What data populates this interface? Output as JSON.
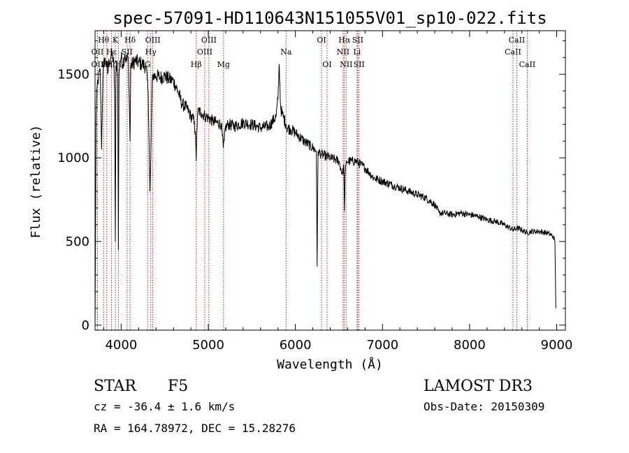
{
  "chart_data": {
    "type": "line",
    "title": "spec-57091-HD110643N151055V01_sp10-022.fits",
    "xlabel": "Wavelength (Å)",
    "ylabel": "Flux (relative)",
    "xlim": [
      3700,
      9100
    ],
    "ylim": [
      -30,
      1760
    ],
    "x_ticks": [
      4000,
      5000,
      6000,
      7000,
      8000,
      9000
    ],
    "y_ticks": [
      0,
      500,
      1000,
      1500
    ],
    "series": [
      {
        "name": "spectrum",
        "x": [
          3700,
          3712,
          3725,
          3740,
          3760,
          3775,
          3790,
          3800,
          3810,
          3820,
          3830,
          3845,
          3860,
          3880,
          3900,
          3915,
          3925,
          3933,
          3940,
          3950,
          3960,
          3968,
          3975,
          3985,
          4000,
          4020,
          4040,
          4060,
          4080,
          4090,
          4102,
          4110,
          4130,
          4160,
          4200,
          4240,
          4280,
          4310,
          4320,
          4330,
          4340,
          4350,
          4360,
          4370,
          4400,
          4450,
          4500,
          4550,
          4600,
          4650,
          4700,
          4750,
          4800,
          4840,
          4855,
          4861,
          4868,
          4880,
          4920,
          4960,
          5000,
          5050,
          5100,
          5150,
          5172,
          5183,
          5195,
          5230,
          5300,
          5400,
          5500,
          5600,
          5700,
          5780,
          5800,
          5815,
          5830,
          5850,
          5893,
          5900,
          5950,
          6000,
          6100,
          6200,
          6240,
          6250,
          6260,
          6300,
          6350,
          6400,
          6450,
          6500,
          6540,
          6555,
          6563,
          6570,
          6590,
          6650,
          6700,
          6750,
          6800,
          6850,
          6900,
          6950,
          7000,
          7100,
          7200,
          7300,
          7400,
          7500,
          7600,
          7650,
          7700,
          7800,
          7900,
          8000,
          8100,
          8200,
          8300,
          8400,
          8498,
          8542,
          8600,
          8662,
          8700,
          8800,
          8900,
          8960,
          8980,
          8990
        ],
        "values": [
          0,
          1250,
          1430,
          1480,
          1520,
          1050,
          1480,
          1540,
          1600,
          1560,
          1580,
          1500,
          1580,
          1600,
          1620,
          1550,
          1400,
          500,
          1500,
          1580,
          1500,
          450,
          1480,
          1580,
          1600,
          1560,
          1620,
          1580,
          1600,
          1400,
          1100,
          1550,
          1560,
          1580,
          1570,
          1560,
          1550,
          1400,
          1100,
          800,
          1000,
          1300,
          1500,
          1490,
          1490,
          1480,
          1490,
          1470,
          1460,
          1400,
          1320,
          1300,
          1250,
          1220,
          1100,
          980,
          1150,
          1280,
          1270,
          1250,
          1240,
          1220,
          1210,
          1200,
          1060,
          1100,
          1180,
          1200,
          1190,
          1210,
          1200,
          1180,
          1190,
          1250,
          1350,
          1560,
          1300,
          1260,
          1200,
          1180,
          1170,
          1150,
          1100,
          1060,
          1040,
          350,
          1040,
          1020,
          1010,
          1000,
          990,
          980,
          900,
          960,
          680,
          900,
          980,
          980,
          980,
          960,
          940,
          910,
          880,
          870,
          860,
          840,
          820,
          800,
          780,
          760,
          720,
          670,
          670,
          660,
          670,
          660,
          650,
          630,
          620,
          600,
          570,
          580,
          570,
          550,
          560,
          560,
          550,
          530,
          500,
          100
        ]
      }
    ],
    "line_markers": [
      {
        "label": "Hθ",
        "x": 3798,
        "row": 0
      },
      {
        "label": "OII",
        "x": 3727,
        "row": 1
      },
      {
        "label": "OII",
        "x": 3727,
        "row": 2
      },
      {
        "label": "Hη",
        "x": 3835,
        "row": 2
      },
      {
        "label": "Hε",
        "x": 3889,
        "row": 1
      },
      {
        "label": "Hζ",
        "x": 3889,
        "row": 2
      },
      {
        "label": "K",
        "x": 3933,
        "row": 0
      },
      {
        "label": "H",
        "x": 3968,
        "row": 2
      },
      {
        "label": "SII",
        "x": 4068,
        "row": 1
      },
      {
        "label": "Hδ",
        "x": 4102,
        "row": 0
      },
      {
        "label": "OIII",
        "x": 4363,
        "row": 0
      },
      {
        "label": "Hγ",
        "x": 4340,
        "row": 1
      },
      {
        "label": "G",
        "x": 4304,
        "row": 2
      },
      {
        "label": "Hβ",
        "x": 4861,
        "row": 2
      },
      {
        "label": "OIII",
        "x": 4959,
        "row": 1
      },
      {
        "label": "OIII",
        "x": 5007,
        "row": 0
      },
      {
        "label": "Mg",
        "x": 5175,
        "row": 2
      },
      {
        "label": "Na",
        "x": 5893,
        "row": 1
      },
      {
        "label": "OI",
        "x": 6300,
        "row": 0
      },
      {
        "label": "OI",
        "x": 6364,
        "row": 2
      },
      {
        "label": "NII",
        "x": 6548,
        "row": 1
      },
      {
        "label": "Hα",
        "x": 6563,
        "row": 0
      },
      {
        "label": "NII",
        "x": 6583,
        "row": 2
      },
      {
        "label": "SII",
        "x": 6716,
        "row": 0
      },
      {
        "label": "Li",
        "x": 6708,
        "row": 1
      },
      {
        "label": "SII",
        "x": 6731,
        "row": 2
      },
      {
        "label": "CaII",
        "x": 8498,
        "row": 1
      },
      {
        "label": "CaII",
        "x": 8542,
        "row": 0
      },
      {
        "label": "CaII",
        "x": 8662,
        "row": 2
      }
    ]
  },
  "info": {
    "class": "STAR",
    "subclass": "F5",
    "survey": "LAMOST DR3",
    "cz": "cz = -36.4 ± 1.6 km/s",
    "obs_date": "Obs-Date: 20150309",
    "coords": "RA = 164.78972, DEC =  15.28276"
  },
  "colors": {
    "axis": "#000000",
    "marker": "#b22222",
    "line": "#000000"
  }
}
